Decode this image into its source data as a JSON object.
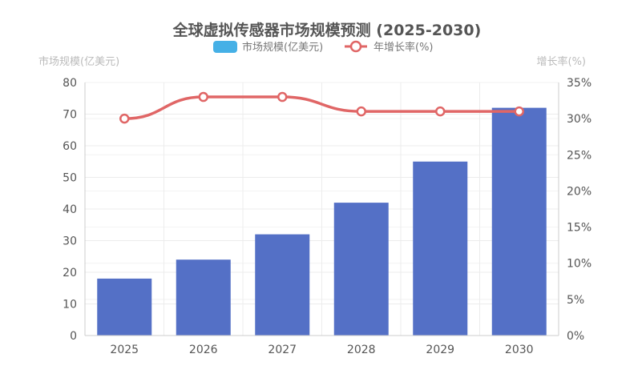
{
  "chart_data": {
    "type": "bar",
    "title": "全球虚拟传感器市场规模预测 (2025-2030)",
    "categories": [
      "2025",
      "2026",
      "2027",
      "2028",
      "2029",
      "2030"
    ],
    "series": [
      {
        "name": "市场规模(亿美元)",
        "type": "bar",
        "axis": "left",
        "color": "#5470c6",
        "values": [
          18,
          24,
          32,
          42,
          55,
          72
        ]
      },
      {
        "name": "年增长率(%)",
        "type": "line",
        "axis": "right",
        "smooth": true,
        "color": "#e06666",
        "values": [
          30,
          33,
          33,
          31,
          31,
          31
        ]
      }
    ],
    "y_left": {
      "label": "市场规模(亿美元)",
      "min": 0,
      "max": 80,
      "ticks": [
        "0",
        "10",
        "20",
        "30",
        "40",
        "50",
        "60",
        "70",
        "80"
      ]
    },
    "y_right": {
      "label": "增长率(%)",
      "min": 0,
      "max": 35,
      "ticks": [
        "0%",
        "5%",
        "10%",
        "15%",
        "20%",
        "25%",
        "30%",
        "35%"
      ]
    },
    "legend": {
      "position": "top-center",
      "items": [
        "市场规模(亿美元)",
        "年增长率(%)"
      ],
      "bar_swatch_color": "#45b0e6"
    },
    "grid": true
  },
  "title": "全球虚拟传感器市场规模预测 (2025-2030)",
  "legend": {
    "bar_label": "市场规模(亿美元)",
    "line_label": "年增长率(%)"
  },
  "axes": {
    "left_name": "市场规模(亿美元)",
    "right_name": "增长率(%)"
  }
}
